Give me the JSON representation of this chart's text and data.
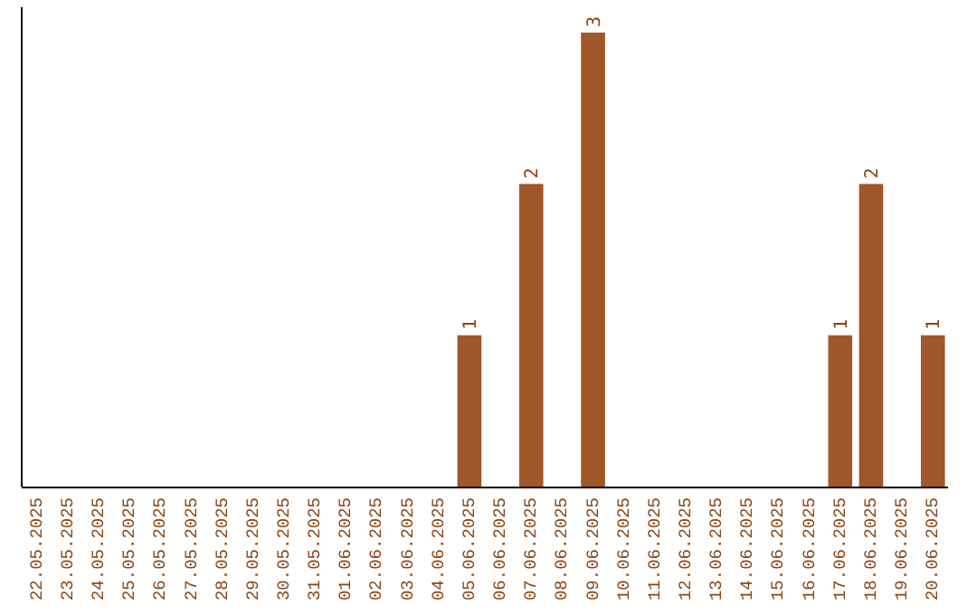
{
  "chart_data": {
    "type": "bar",
    "categories": [
      "22.05.2025",
      "23.05.2025",
      "24.05.2025",
      "25.05.2025",
      "26.05.2025",
      "27.05.2025",
      "28.05.2025",
      "29.05.2025",
      "30.05.2025",
      "31.05.2025",
      "01.06.2025",
      "02.06.2025",
      "03.06.2025",
      "04.06.2025",
      "05.06.2025",
      "06.06.2025",
      "07.06.2025",
      "08.06.2025",
      "09.06.2025",
      "10.06.2025",
      "11.06.2025",
      "12.06.2025",
      "13.06.2025",
      "14.06.2025",
      "15.06.2025",
      "16.06.2025",
      "17.06.2025",
      "18.06.2025",
      "19.06.2025",
      "20.06.2025"
    ],
    "values": [
      null,
      null,
      null,
      null,
      null,
      null,
      null,
      null,
      null,
      null,
      null,
      null,
      null,
      null,
      1,
      null,
      2,
      null,
      3,
      null,
      null,
      null,
      null,
      null,
      null,
      null,
      1,
      2,
      null,
      1
    ],
    "data_labels": true,
    "color": "#a0572a",
    "grid": false
  }
}
